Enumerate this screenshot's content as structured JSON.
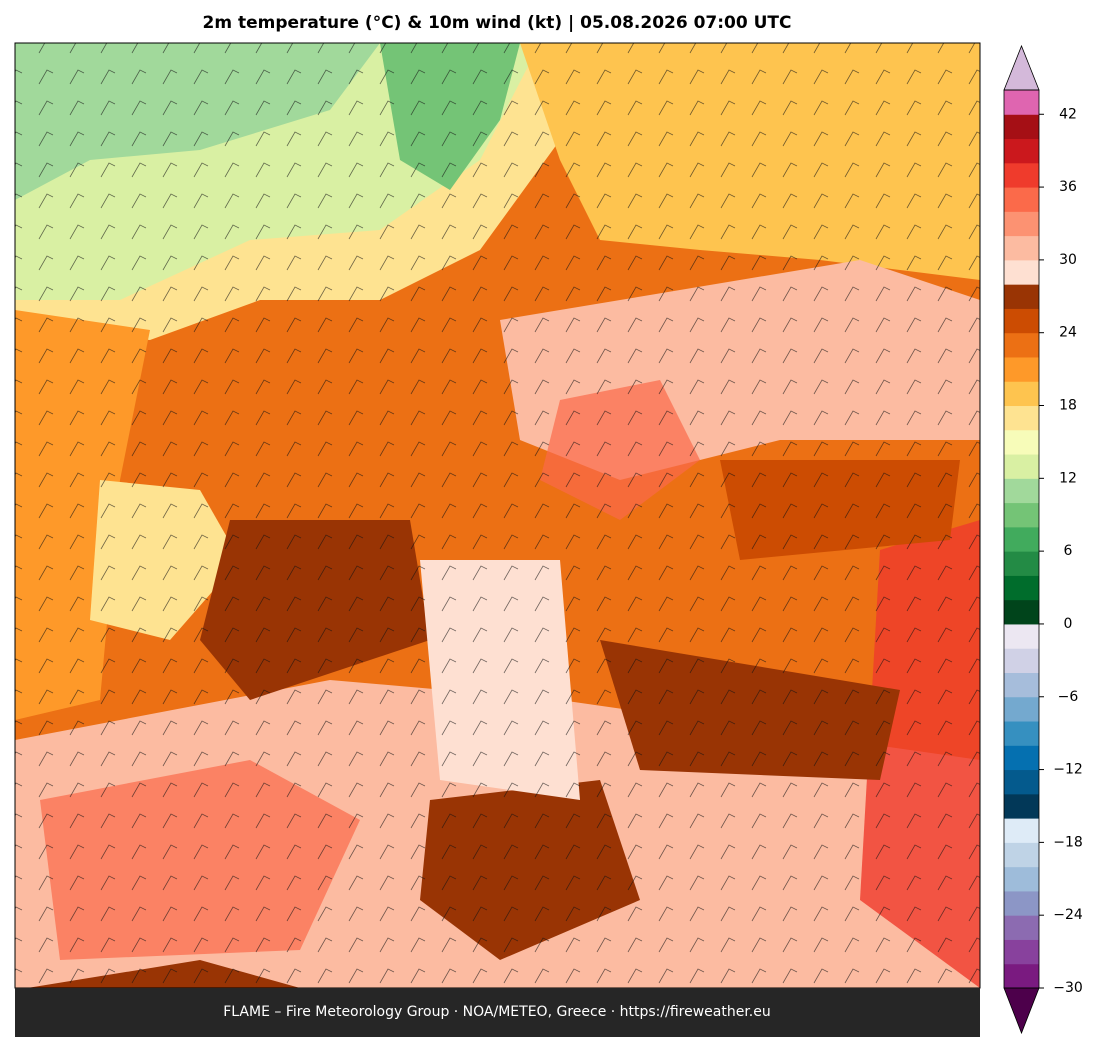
{
  "title": "2m temperature (°C) & 10m wind (kt)  |  05.08.2026 07:00 UTC",
  "footer": "FLAME – Fire Meteorology Group · NOA/METEO, Greece · https://fireweather.eu",
  "colorbar": {
    "range": [
      -30,
      44
    ],
    "ticks": [
      {
        "value": -30,
        "label": "−30"
      },
      {
        "value": -24,
        "label": "−24"
      },
      {
        "value": -18,
        "label": "−18"
      },
      {
        "value": -12,
        "label": "−12"
      },
      {
        "value": -6,
        "label": "−6"
      },
      0,
      6,
      12,
      18,
      24,
      30,
      36,
      42
    ],
    "colors": [
      "#7a1a80",
      "#88419d",
      "#8c6bb1",
      "#8c96c6",
      "#9ebcda",
      "#bfd3e6",
      "#deebf7",
      "#023858",
      "#045a8d",
      "#0570b0",
      "#3690c0",
      "#74a9cf",
      "#a6bddb",
      "#d0d1e6",
      "#ece7f2",
      "#00441b",
      "#006d2c",
      "#238b45",
      "#41ab5d",
      "#74c476",
      "#a1d99b",
      "#d9f0a3",
      "#f7fcb9",
      "#fee391",
      "#fec44f",
      "#fe9929",
      "#ec7014",
      "#cc4c02",
      "#993404",
      "#fee0d2",
      "#fcbba1",
      "#fc9272",
      "#fb6a4a",
      "#ef3b2c",
      "#cb181d",
      "#a50f15",
      "#df65b0"
    ],
    "under": "#4d004b",
    "over": "#d4b9da"
  }
}
